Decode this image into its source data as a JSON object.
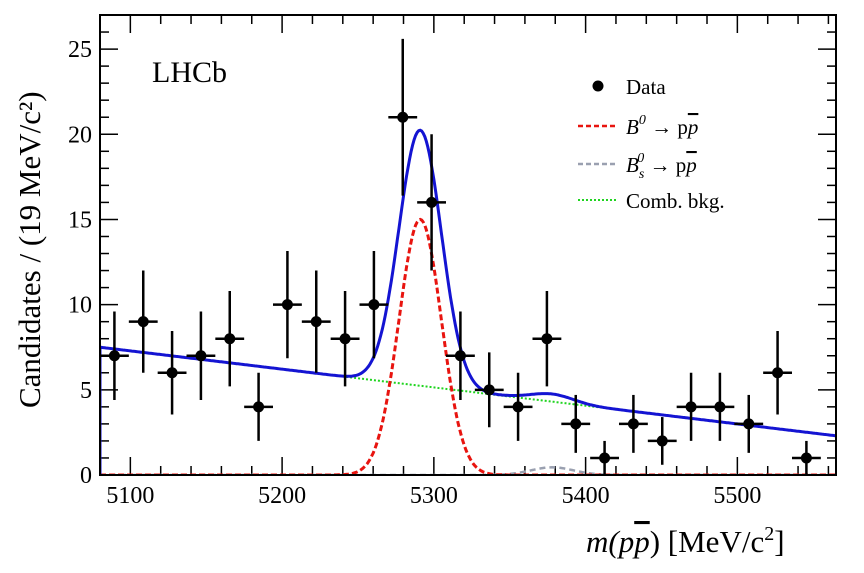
{
  "chart_data": {
    "type": "scatter",
    "experiment_label": "LHCb",
    "xlabel_parts": [
      "m(p",
      "p",
      ") [MeV/c",
      "2",
      "]"
    ],
    "ylabel": "Candidates / (19 MeV/c²)",
    "xlim": [
      5080,
      5565
    ],
    "ylim": [
      0,
      27
    ],
    "x_ticks": [
      5100,
      5200,
      5300,
      5400,
      5500
    ],
    "y_ticks": [
      0,
      5,
      10,
      15,
      20,
      25
    ],
    "bin_width": 19,
    "legend": [
      {
        "label": "Data",
        "style": "marker",
        "color": "#000000"
      },
      {
        "label_parts": [
          "B",
          "0",
          " → p",
          "p"
        ],
        "style": "dashed",
        "color": "#e8140f"
      },
      {
        "label_parts": [
          "B",
          "s",
          "0",
          " → p",
          "p"
        ],
        "style": "dashed",
        "color": "#9aa0b0"
      },
      {
        "label": "Comb. bkg.",
        "style": "dotted",
        "color": "#1fd41f"
      }
    ],
    "series": [
      {
        "name": "Data",
        "kind": "points",
        "x": [
          5089.5,
          5108.5,
          5127.5,
          5146.5,
          5165.5,
          5184.5,
          5203.5,
          5222.5,
          5241.5,
          5260.5,
          5279.5,
          5298.5,
          5317.5,
          5336.5,
          5355.5,
          5374.5,
          5393.5,
          5412.5,
          5431.5,
          5450.5,
          5469.5,
          5488.5,
          5507.5,
          5526.5,
          5545.5
        ],
        "y": [
          7,
          9,
          6,
          7,
          8,
          4,
          10,
          9,
          8,
          10,
          21,
          16,
          7,
          5,
          4,
          8,
          3,
          1,
          3,
          2,
          4,
          4,
          3,
          6,
          1
        ],
        "err": [
          2.6,
          3.0,
          2.45,
          2.6,
          2.8,
          2.0,
          3.15,
          3.0,
          2.8,
          3.15,
          4.6,
          4.0,
          2.6,
          2.2,
          2.0,
          2.8,
          1.7,
          1.0,
          1.7,
          1.4,
          2.0,
          2.0,
          1.7,
          2.45,
          1.0
        ]
      },
      {
        "name": "Total fit",
        "kind": "curve",
        "color": "#1414d2"
      },
      {
        "name": "B0",
        "kind": "curve",
        "color": "#e8140f",
        "peak": 15.0,
        "mean": 5291,
        "sigma": 14
      },
      {
        "name": "Bs0",
        "kind": "curve",
        "color": "#9aa0b0",
        "peak": 0.45,
        "mean": 5378,
        "sigma": 14
      },
      {
        "name": "Comb",
        "kind": "curve",
        "color": "#1fd41f",
        "y_at_xmin": 7.5,
        "y_at_xmax": 2.3
      }
    ]
  }
}
